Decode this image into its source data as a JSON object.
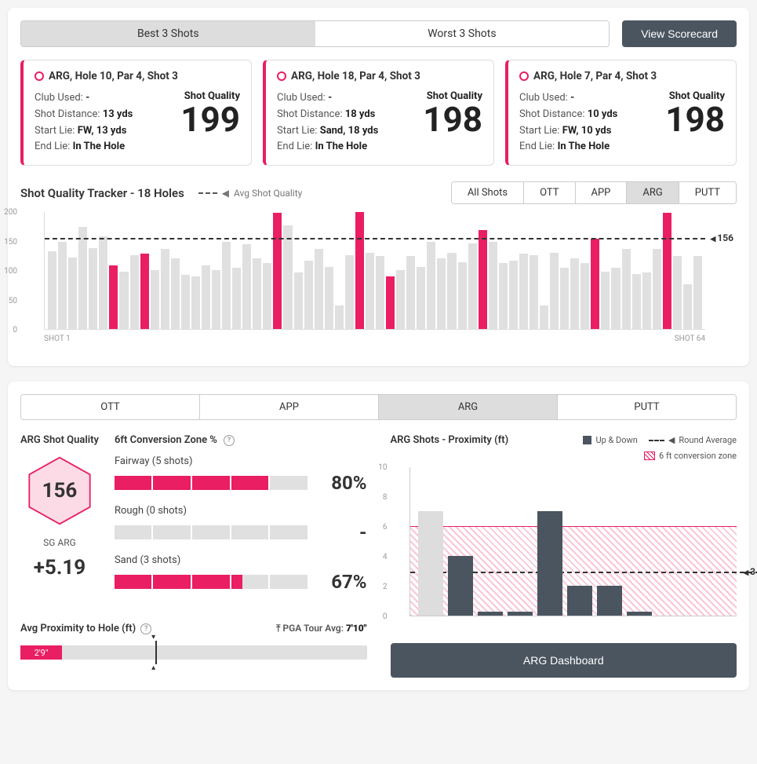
{
  "colors": {
    "accent": "#e91e63",
    "dark": "#4a5560",
    "barDim": "#e0e0e0"
  },
  "topTabs": {
    "best": "Best 3 Shots",
    "worst": "Worst 3 Shots",
    "active": "best"
  },
  "scorecardBtn": "View Scorecard",
  "shotCards": [
    {
      "title": "ARG, Hole 10, Par 4, Shot 3",
      "clubLabel": "Club Used:",
      "club": "-",
      "distLabel": "Shot Distance:",
      "dist": "13 yds",
      "startLabel": "Start Lie:",
      "start": "FW, 13 yds",
      "endLabel": "End Lie:",
      "end": "In The Hole",
      "qLabel": "Shot Quality",
      "q": 199
    },
    {
      "title": "ARG, Hole 18, Par 4, Shot 3",
      "clubLabel": "Club Used:",
      "club": "-",
      "distLabel": "Shot Distance:",
      "dist": "18 yds",
      "startLabel": "Start Lie:",
      "start": "Sand, 18 yds",
      "endLabel": "End Lie:",
      "end": "In The Hole",
      "qLabel": "Shot Quality",
      "q": 198
    },
    {
      "title": "ARG, Hole 7, Par 4, Shot 3",
      "clubLabel": "Club Used:",
      "club": "-",
      "distLabel": "Shot Distance:",
      "dist": "10 yds",
      "startLabel": "Start Lie:",
      "start": "FW, 10 yds",
      "endLabel": "End Lie:",
      "end": "In The Hole",
      "qLabel": "Shot Quality",
      "q": 198
    }
  ],
  "tracker": {
    "title": "Shot Quality Tracker - 18 Holes",
    "avgLegend": "Avg Shot Quality",
    "tabs": [
      "All Shots",
      "OTT",
      "APP",
      "ARG",
      "PUTT"
    ],
    "activeTab": "ARG",
    "ymax": 200,
    "yticks": [
      200,
      150,
      100,
      50,
      0
    ],
    "avg": 156,
    "xLabels": [
      "SHOT 1",
      "SHOT 64"
    ],
    "bars": [
      {
        "v": 132,
        "h": 0
      },
      {
        "v": 148,
        "h": 0
      },
      {
        "v": 122,
        "h": 0
      },
      {
        "v": 174,
        "h": 0
      },
      {
        "v": 138,
        "h": 0
      },
      {
        "v": 158,
        "h": 0
      },
      {
        "v": 108,
        "h": 1
      },
      {
        "v": 98,
        "h": 0
      },
      {
        "v": 126,
        "h": 0
      },
      {
        "v": 128,
        "h": 1
      },
      {
        "v": 100,
        "h": 0
      },
      {
        "v": 136,
        "h": 0
      },
      {
        "v": 120,
        "h": 0
      },
      {
        "v": 92,
        "h": 0
      },
      {
        "v": 90,
        "h": 0
      },
      {
        "v": 108,
        "h": 0
      },
      {
        "v": 100,
        "h": 0
      },
      {
        "v": 148,
        "h": 0
      },
      {
        "v": 104,
        "h": 0
      },
      {
        "v": 144,
        "h": 0
      },
      {
        "v": 120,
        "h": 0
      },
      {
        "v": 112,
        "h": 0
      },
      {
        "v": 198,
        "h": 1
      },
      {
        "v": 176,
        "h": 0
      },
      {
        "v": 96,
        "h": 0
      },
      {
        "v": 116,
        "h": 0
      },
      {
        "v": 136,
        "h": 0
      },
      {
        "v": 106,
        "h": 0
      },
      {
        "v": 40,
        "h": 0
      },
      {
        "v": 126,
        "h": 0
      },
      {
        "v": 199,
        "h": 1
      },
      {
        "v": 130,
        "h": 0
      },
      {
        "v": 124,
        "h": 0
      },
      {
        "v": 90,
        "h": 1
      },
      {
        "v": 100,
        "h": 0
      },
      {
        "v": 124,
        "h": 0
      },
      {
        "v": 106,
        "h": 0
      },
      {
        "v": 148,
        "h": 0
      },
      {
        "v": 120,
        "h": 0
      },
      {
        "v": 130,
        "h": 0
      },
      {
        "v": 114,
        "h": 0
      },
      {
        "v": 146,
        "h": 0
      },
      {
        "v": 168,
        "h": 1
      },
      {
        "v": 148,
        "h": 0
      },
      {
        "v": 112,
        "h": 0
      },
      {
        "v": 116,
        "h": 0
      },
      {
        "v": 128,
        "h": 0
      },
      {
        "v": 126,
        "h": 0
      },
      {
        "v": 40,
        "h": 0
      },
      {
        "v": 130,
        "h": 0
      },
      {
        "v": 104,
        "h": 0
      },
      {
        "v": 120,
        "h": 0
      },
      {
        "v": 112,
        "h": 0
      },
      {
        "v": 154,
        "h": 1
      },
      {
        "v": 98,
        "h": 0
      },
      {
        "v": 104,
        "h": 0
      },
      {
        "v": 136,
        "h": 0
      },
      {
        "v": 94,
        "h": 0
      },
      {
        "v": 96,
        "h": 0
      },
      {
        "v": 136,
        "h": 0
      },
      {
        "v": 198,
        "h": 1
      },
      {
        "v": 124,
        "h": 0
      },
      {
        "v": 76,
        "h": 0
      },
      {
        "v": 124,
        "h": 0
      }
    ]
  },
  "lowerTabs": {
    "items": [
      "OTT",
      "APP",
      "ARG",
      "PUTT"
    ],
    "active": "ARG"
  },
  "argQuality": {
    "title": "ARG Shot Quality",
    "hex": 156,
    "sgLabel": "SG ARG",
    "sgVal": "+5.19"
  },
  "conversion": {
    "title": "6ft Conversion Zone %",
    "rows": [
      {
        "label": "Fairway (5 shots)",
        "segments": 5,
        "filled": 4,
        "pct": "80%"
      },
      {
        "label": "Rough (0 shots)",
        "segments": 5,
        "filled": 0,
        "pct": "-"
      },
      {
        "label": "Sand (3 shots)",
        "segments": 5,
        "filled": 3,
        "partial": 0.3,
        "pct": "67%"
      }
    ]
  },
  "proximity": {
    "title": "Avg Proximity to Hole (ft)",
    "pgaLabel": "PGA Tour Avg:",
    "pgaVal": "7'10\"",
    "fillLabel": "2'9\"",
    "fillPct": 12,
    "markerPct": 39
  },
  "proxChart": {
    "title": "ARG Shots - Proximity (ft)",
    "legend": {
      "updown": "Up & Down",
      "roundavg": "Round Average",
      "zone": "6 ft conversion zone"
    },
    "ymax": 10,
    "yticks": [
      10,
      8,
      6,
      4,
      2,
      0
    ],
    "zoneTop": 6,
    "avg": 3,
    "bars": [
      {
        "v": 7,
        "up": 0
      },
      {
        "v": 4,
        "up": 1
      },
      {
        "v": 0.3,
        "up": 1
      },
      {
        "v": 0.3,
        "up": 1
      },
      {
        "v": 7,
        "up": 1
      },
      {
        "v": 2,
        "up": 1
      },
      {
        "v": 2,
        "up": 1
      },
      {
        "v": 0.3,
        "up": 1
      }
    ]
  },
  "dashBtn": "ARG Dashboard"
}
